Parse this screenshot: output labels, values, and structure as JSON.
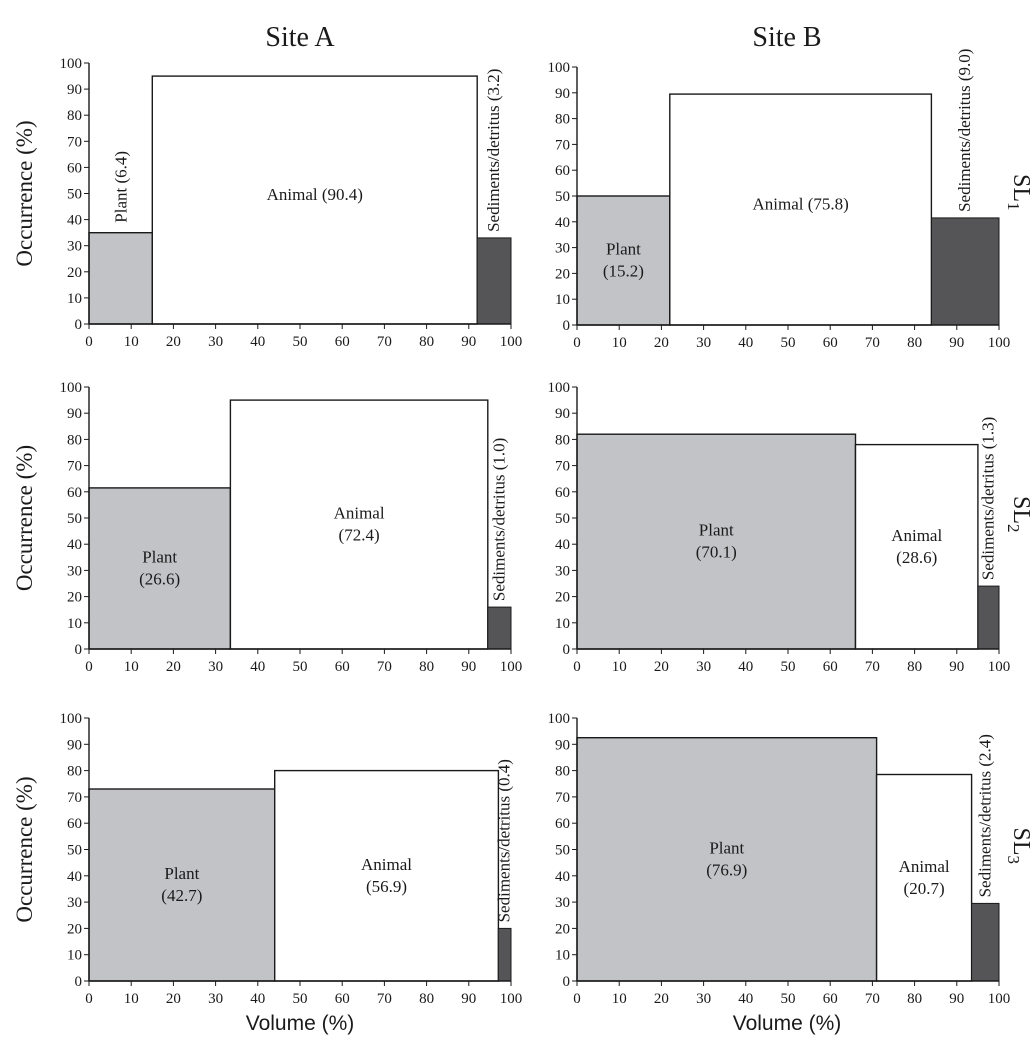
{
  "figure": {
    "column_titles": [
      "Site A",
      "Site B"
    ],
    "row_labels": [
      {
        "main": "SL",
        "sub": "1"
      },
      {
        "main": "SL",
        "sub": "2"
      },
      {
        "main": "SL",
        "sub": "3"
      }
    ],
    "xlabel": "Volume (%)",
    "ylabel": "Occurrence (%)",
    "colors": {
      "plant": "#c2c3c6",
      "animal": "#ffffff",
      "sediments": "#555558",
      "edge": "#1a1a1a"
    }
  },
  "chart_data": [
    {
      "type": "bar",
      "site": "Site A",
      "row": "SL1",
      "xlim": [
        0,
        100
      ],
      "ylim": [
        0,
        100
      ],
      "xticks": [
        0,
        10,
        20,
        30,
        40,
        50,
        60,
        70,
        80,
        90,
        100
      ],
      "yticks": [
        0,
        10,
        20,
        30,
        40,
        50,
        60,
        70,
        80,
        90,
        100
      ],
      "bars": [
        {
          "category": "Plant",
          "volume": 15,
          "occurrence": 35,
          "label": "Plant (6.4)"
        },
        {
          "category": "Animal",
          "volume": 77,
          "occurrence": 95,
          "label": "Animal (90.4)"
        },
        {
          "category": "Sediments/detritus",
          "volume": 8,
          "occurrence": 33,
          "label": "Sediments/detritus (3.2)"
        }
      ]
    },
    {
      "type": "bar",
      "site": "Site B",
      "row": "SL1",
      "xlim": [
        0,
        100
      ],
      "ylim": [
        0,
        100
      ],
      "xticks": [
        0,
        10,
        20,
        30,
        40,
        50,
        60,
        70,
        80,
        90,
        100
      ],
      "yticks": [
        0,
        10,
        20,
        30,
        40,
        50,
        60,
        70,
        80,
        90,
        100
      ],
      "bars": [
        {
          "category": "Plant",
          "volume": 22,
          "occurrence": 50,
          "label": [
            "Plant",
            "(15.2)"
          ]
        },
        {
          "category": "Animal",
          "volume": 62,
          "occurrence": 89.5,
          "label": "Animal (75.8)"
        },
        {
          "category": "Sediments/detritus",
          "volume": 16,
          "occurrence": 41.5,
          "label": "Sediments/detritus (9.0)"
        }
      ]
    },
    {
      "type": "bar",
      "site": "Site A",
      "row": "SL2",
      "xlim": [
        0,
        100
      ],
      "ylim": [
        0,
        100
      ],
      "xticks": [
        0,
        10,
        20,
        30,
        40,
        50,
        60,
        70,
        80,
        90,
        100
      ],
      "yticks": [
        0,
        10,
        20,
        30,
        40,
        50,
        60,
        70,
        80,
        90,
        100
      ],
      "bars": [
        {
          "category": "Plant",
          "volume": 33.5,
          "occurrence": 61.5,
          "label": [
            "Plant",
            "(26.6)"
          ]
        },
        {
          "category": "Animal",
          "volume": 61,
          "occurrence": 95,
          "label": [
            "Animal",
            "(72.4)"
          ]
        },
        {
          "category": "Sediments/detritus",
          "volume": 5.5,
          "occurrence": 16,
          "label": "Sediments/detritus (1.0)"
        }
      ]
    },
    {
      "type": "bar",
      "site": "Site B",
      "row": "SL2",
      "xlim": [
        0,
        100
      ],
      "ylim": [
        0,
        100
      ],
      "xticks": [
        0,
        10,
        20,
        30,
        40,
        50,
        60,
        70,
        80,
        90,
        100
      ],
      "yticks": [
        0,
        10,
        20,
        30,
        40,
        50,
        60,
        70,
        80,
        90,
        100
      ],
      "bars": [
        {
          "category": "Plant",
          "volume": 66,
          "occurrence": 82,
          "label": [
            "Plant",
            "(70.1)"
          ]
        },
        {
          "category": "Animal",
          "volume": 29,
          "occurrence": 78,
          "label": [
            "Animal",
            "(28.6)"
          ]
        },
        {
          "category": "Sediments/detritus",
          "volume": 5,
          "occurrence": 24,
          "label": "Sediments/detritus (1.3)"
        }
      ]
    },
    {
      "type": "bar",
      "site": "Site A",
      "row": "SL3",
      "xlim": [
        0,
        100
      ],
      "ylim": [
        0,
        100
      ],
      "xticks": [
        0,
        10,
        20,
        30,
        40,
        50,
        60,
        70,
        80,
        90,
        100
      ],
      "yticks": [
        0,
        10,
        20,
        30,
        40,
        50,
        60,
        70,
        80,
        90,
        100
      ],
      "bars": [
        {
          "category": "Plant",
          "volume": 44,
          "occurrence": 73,
          "label": [
            "Plant",
            "(42.7)"
          ]
        },
        {
          "category": "Animal",
          "volume": 53,
          "occurrence": 80,
          "label": [
            "Animal",
            "(56.9)"
          ]
        },
        {
          "category": "Sediments/detritus",
          "volume": 3,
          "occurrence": 20,
          "label": "Sediments/detritus (0.4)"
        }
      ]
    },
    {
      "type": "bar",
      "site": "Site B",
      "row": "SL3",
      "xlim": [
        0,
        100
      ],
      "ylim": [
        0,
        100
      ],
      "xticks": [
        0,
        10,
        20,
        30,
        40,
        50,
        60,
        70,
        80,
        90,
        100
      ],
      "yticks": [
        0,
        10,
        20,
        30,
        40,
        50,
        60,
        70,
        80,
        90,
        100
      ],
      "bars": [
        {
          "category": "Plant",
          "volume": 71,
          "occurrence": 92.5,
          "label": [
            "Plant",
            "(76.9)"
          ]
        },
        {
          "category": "Animal",
          "volume": 22.5,
          "occurrence": 78.5,
          "label": [
            "Animal",
            "(20.7)"
          ]
        },
        {
          "category": "Sediments/detritus",
          "volume": 6.5,
          "occurrence": 29.5,
          "label": "Sediments/detritus (2.4)"
        }
      ]
    }
  ]
}
